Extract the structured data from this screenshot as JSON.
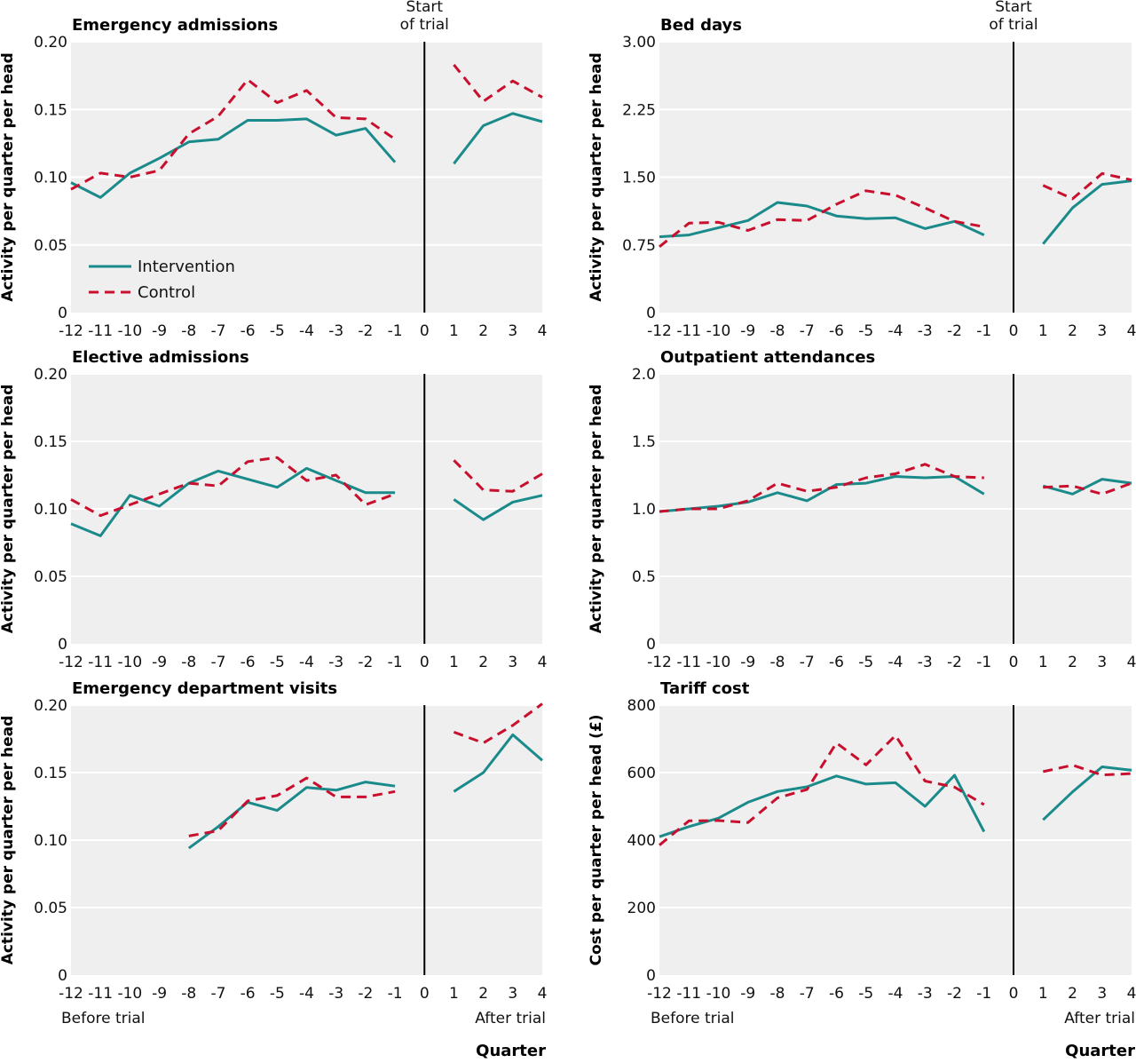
{
  "colors": {
    "intervention": "#1a8a8a",
    "control": "#c8102e"
  },
  "x_ticks": [
    "-12",
    "-11",
    "-10",
    "-9",
    "-8",
    "-7",
    "-6",
    "-5",
    "-4",
    "-3",
    "-2",
    "-1",
    "0",
    "1",
    "2",
    "3",
    "4"
  ],
  "start_trial": [
    "Start",
    "of trial"
  ],
  "before_label": "Before trial",
  "after_label": "After trial",
  "quarter_label": "Quarter",
  "legend": {
    "intervention": "Intervention",
    "control": "Control"
  },
  "chart_data": [
    {
      "type": "line",
      "title": "Emergency admissions",
      "ylabel": "Activity per quarter per head",
      "ylim": [
        0,
        0.2
      ],
      "yticks": [
        "0",
        "0.05",
        "0.10",
        "0.15",
        "0.20"
      ],
      "x": [
        -12,
        -11,
        -10,
        -9,
        -8,
        -7,
        -6,
        -5,
        -4,
        -3,
        -2,
        -1,
        1,
        2,
        3,
        4
      ],
      "series": [
        {
          "name": "Intervention",
          "values": [
            0.096,
            0.085,
            0.103,
            0.114,
            0.126,
            0.128,
            0.142,
            0.142,
            0.143,
            0.131,
            0.136,
            0.111,
            0.11,
            0.138,
            0.147,
            0.141
          ]
        },
        {
          "name": "Control",
          "values": [
            0.091,
            0.103,
            0.1,
            0.105,
            0.132,
            0.145,
            0.172,
            0.155,
            0.164,
            0.144,
            0.143,
            0.128,
            0.183,
            0.156,
            0.171,
            0.159
          ]
        }
      ]
    },
    {
      "type": "line",
      "title": "Bed days",
      "ylabel": "Activity per quarter per head",
      "ylim": [
        0,
        3
      ],
      "yticks": [
        "0",
        "0.75",
        "1.50",
        "2.25",
        "3.00"
      ],
      "x": [
        -12,
        -11,
        -10,
        -9,
        -8,
        -7,
        -6,
        -5,
        -4,
        -3,
        -2,
        -1,
        1,
        2,
        3,
        4
      ],
      "series": [
        {
          "name": "Intervention",
          "values": [
            0.84,
            0.86,
            0.94,
            1.02,
            1.22,
            1.18,
            1.07,
            1.04,
            1.05,
            0.93,
            1.01,
            0.86,
            0.76,
            1.16,
            1.42,
            1.46
          ]
        },
        {
          "name": "Control",
          "values": [
            0.73,
            0.99,
            1.0,
            0.91,
            1.03,
            1.02,
            1.2,
            1.35,
            1.3,
            1.16,
            1.01,
            0.95,
            1.41,
            1.26,
            1.54,
            1.47
          ]
        }
      ]
    },
    {
      "type": "line",
      "title": "Elective admissions",
      "ylabel": "Activity per quarter per head",
      "ylim": [
        0,
        0.2
      ],
      "yticks": [
        "0",
        "0.05",
        "0.10",
        "0.15",
        "0.20"
      ],
      "x": [
        -12,
        -11,
        -10,
        -9,
        -8,
        -7,
        -6,
        -5,
        -4,
        -3,
        -2,
        -1,
        1,
        2,
        3,
        4
      ],
      "series": [
        {
          "name": "Intervention",
          "values": [
            0.089,
            0.08,
            0.11,
            0.102,
            0.119,
            0.128,
            0.122,
            0.116,
            0.13,
            0.121,
            0.112,
            0.112,
            0.107,
            0.092,
            0.105,
            0.11
          ]
        },
        {
          "name": "Control",
          "values": [
            0.107,
            0.095,
            0.103,
            0.111,
            0.119,
            0.117,
            0.135,
            0.138,
            0.121,
            0.125,
            0.103,
            0.111,
            0.136,
            0.114,
            0.113,
            0.126
          ]
        }
      ]
    },
    {
      "type": "line",
      "title": "Outpatient attendances",
      "ylabel": "Activity per quarter per head",
      "ylim": [
        0,
        2
      ],
      "yticks": [
        "0",
        "0.5",
        "1.0",
        "1.5",
        "2.0"
      ],
      "x": [
        -12,
        -11,
        -10,
        -9,
        -8,
        -7,
        -6,
        -5,
        -4,
        -3,
        -2,
        -1,
        1,
        2,
        3,
        4
      ],
      "series": [
        {
          "name": "Intervention",
          "values": [
            0.98,
            1.0,
            1.02,
            1.05,
            1.12,
            1.06,
            1.18,
            1.19,
            1.24,
            1.23,
            1.24,
            1.11,
            1.17,
            1.11,
            1.22,
            1.19
          ]
        },
        {
          "name": "Control",
          "values": [
            0.98,
            1.0,
            1.0,
            1.06,
            1.19,
            1.13,
            1.16,
            1.23,
            1.26,
            1.33,
            1.24,
            1.23,
            1.16,
            1.17,
            1.11,
            1.19
          ]
        }
      ]
    },
    {
      "type": "line",
      "title": "Emergency department visits",
      "ylabel": "Activity per quarter per head",
      "ylim": [
        0,
        0.2
      ],
      "yticks": [
        "0",
        "0.05",
        "0.10",
        "0.15",
        "0.20"
      ],
      "x": [
        -8,
        -7,
        -6,
        -5,
        -4,
        -3,
        -2,
        -1,
        1,
        2,
        3,
        4
      ],
      "series": [
        {
          "name": "Intervention",
          "values": [
            0.094,
            0.11,
            0.128,
            0.122,
            0.139,
            0.137,
            0.143,
            0.14,
            0.136,
            0.15,
            0.178,
            0.159
          ]
        },
        {
          "name": "Control",
          "values": [
            0.103,
            0.107,
            0.129,
            0.133,
            0.146,
            0.132,
            0.132,
            0.136,
            0.18,
            0.172,
            0.185,
            0.201
          ]
        }
      ]
    },
    {
      "type": "line",
      "title": "Tariff cost",
      "ylabel": "Cost per quarter per head (£)",
      "ylim": [
        0,
        800
      ],
      "yticks": [
        "0",
        "200",
        "400",
        "600",
        "800"
      ],
      "x": [
        -12,
        -11,
        -10,
        -9,
        -8,
        -7,
        -6,
        -5,
        -4,
        -3,
        -2,
        -1,
        1,
        2,
        3,
        4
      ],
      "series": [
        {
          "name": "Intervention",
          "values": [
            410,
            440,
            465,
            512,
            544,
            558,
            590,
            566,
            570,
            500,
            592,
            425,
            460,
            543,
            617,
            607
          ]
        },
        {
          "name": "Control",
          "values": [
            385,
            457,
            458,
            452,
            525,
            550,
            688,
            623,
            710,
            575,
            557,
            505,
            603,
            622,
            593,
            597
          ]
        }
      ]
    }
  ]
}
